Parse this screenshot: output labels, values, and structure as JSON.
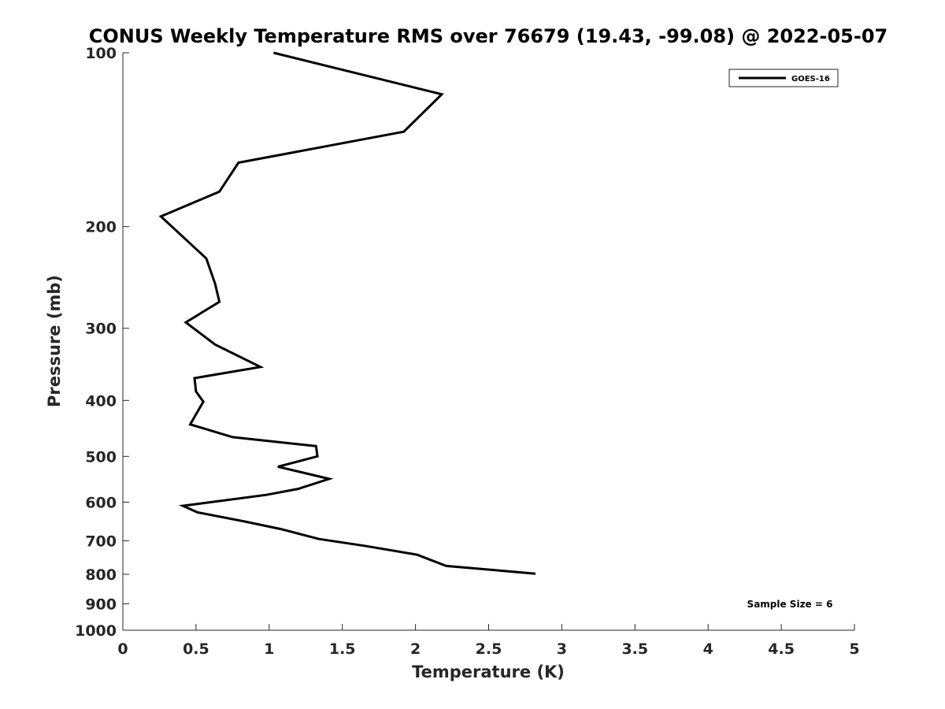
{
  "chart_data": {
    "type": "line",
    "title": "CONUS Weekly Temperature RMS over 76679 (19.43, -99.08) @ 2022-05-07",
    "xlabel": "Temperature (K)",
    "ylabel": "Pressure (mb)",
    "xlim": [
      0,
      5
    ],
    "ylim": [
      100,
      1000
    ],
    "yscale": "log",
    "yreversed": true,
    "xticks": [
      0,
      0.5,
      1,
      1.5,
      2,
      2.5,
      3,
      3.5,
      4,
      4.5,
      5
    ],
    "xtick_labels": [
      "0",
      "0.5",
      "1",
      "1.5",
      "2",
      "2.5",
      "3",
      "3.5",
      "4",
      "4.5",
      "5"
    ],
    "yticks": [
      100,
      200,
      300,
      400,
      500,
      600,
      700,
      800,
      900,
      1000
    ],
    "ytick_labels": [
      "100",
      "200",
      "300",
      "400",
      "500",
      "600",
      "700",
      "800",
      "900",
      "1000"
    ],
    "grid": false,
    "legend_position": "top-right",
    "annotation": "Sample Size = 6",
    "series": [
      {
        "name": "GOES-16",
        "color": "#000000",
        "x": [
          1.03,
          2.18,
          1.92,
          0.79,
          0.66,
          0.26,
          0.57,
          0.63,
          0.66,
          0.43,
          0.63,
          0.94,
          0.49,
          0.5,
          0.55,
          0.46,
          0.75,
          1.32,
          1.33,
          1.06,
          1.41,
          1.2,
          0.98,
          0.41,
          0.51,
          0.83,
          1.08,
          1.34,
          1.65,
          2.01,
          2.21,
          2.82
        ],
        "y": [
          100,
          118,
          137,
          155,
          174,
          192,
          227,
          251,
          270,
          293,
          320,
          350,
          366,
          386,
          402,
          440,
          463,
          480,
          500,
          521,
          547,
          569,
          583,
          609,
          625,
          648,
          668,
          695,
          714,
          740,
          774,
          798
        ]
      }
    ]
  }
}
